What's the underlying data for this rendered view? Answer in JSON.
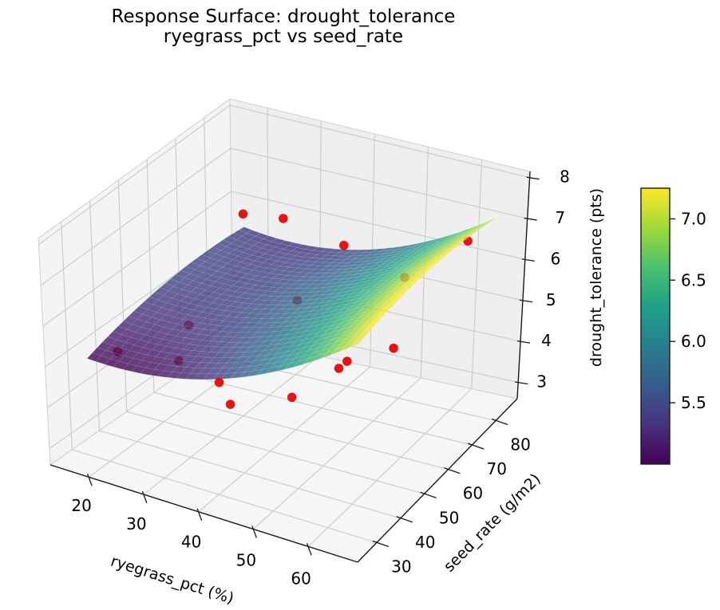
{
  "title": {
    "line1": "Response Surface: drought_tolerance",
    "line2": "ryegrass_pct vs seed_rate"
  },
  "chart_data": {
    "type": "surface",
    "subtype": "3d-response-surface-with-scatter",
    "x": {
      "label": "ryegrass_pct (%)",
      "ticks": [
        20,
        30,
        40,
        50,
        60
      ],
      "range": [
        13,
        69
      ]
    },
    "y": {
      "label": "seed_rate (g/m2)",
      "ticks": [
        30,
        40,
        50,
        60,
        70,
        80
      ],
      "range": [
        22,
        89
      ]
    },
    "z": {
      "label": "drought_tolerance (pts)",
      "ticks": [
        3,
        4,
        5,
        6,
        7,
        8
      ],
      "range": [
        2.6,
        8.15
      ]
    },
    "grid": true,
    "legend": false,
    "view": {
      "elev_deg": 30,
      "azim_deg": -60
    },
    "surface": {
      "colormap": "viridis",
      "color_range": [
        5.0,
        7.25
      ],
      "domain_x": [
        17,
        64.5
      ],
      "domain_y": [
        29,
        86
      ],
      "model": "z = b0 + b1*(x-17) + b2*(y-30) + b3*(x-17)^2 + b4*(y-30)^2 + b5*(x-17)*(y-30)",
      "coeffs": {
        "b0": 5.05,
        "b1": -0.0098,
        "b2": 0.0225,
        "b3": 0.00118,
        "b4": -0.000283,
        "b5": -0.000213
      }
    },
    "scatter": {
      "color": "#f01010",
      "point_fields": [
        "ryegrass_pct",
        "seed_rate",
        "drought_tolerance",
        "occluded_by_surface"
      ],
      "points": [
        [
          20,
          80,
          6.1,
          0
        ],
        [
          25,
          85,
          5.9,
          0
        ],
        [
          40,
          60,
          5.7,
          1
        ],
        [
          25,
          50,
          5.1,
          1
        ],
        [
          18,
          38,
          4.8,
          1
        ],
        [
          28,
          40,
          4.85,
          1
        ],
        [
          40,
          30,
          5.3,
          0
        ],
        [
          52,
          32,
          5.3,
          0
        ],
        [
          42,
          30,
          4.85,
          0
        ],
        [
          38,
          82,
          5.8,
          0
        ],
        [
          62,
          80,
          6.75,
          1
        ],
        [
          55,
          70,
          6.2,
          1
        ],
        [
          60,
          55,
          5.5,
          0
        ],
        [
          55,
          44,
          5.45,
          0
        ],
        [
          56,
          45,
          5.6,
          0
        ]
      ]
    },
    "colorbar": {
      "range": [
        5.0,
        7.25
      ],
      "tick_values": [
        5.5,
        6.0,
        6.5,
        7.0
      ],
      "tick_labels": [
        "5.5",
        "6.0",
        "6.5",
        "7.0"
      ]
    }
  },
  "colors": {
    "viridis": [
      "#440154",
      "#46327e",
      "#365c8d",
      "#277f8e",
      "#1fa187",
      "#4ac16d",
      "#a0da39",
      "#fde725"
    ],
    "scatter_red": "#f01010",
    "scatter_edge": "#a00000",
    "pane_left": "#f4f4f4",
    "pane_right": "#efefef",
    "pane_bottom": "#f6f6f6",
    "grid_line": "#cccccc",
    "pane_edge": "#cfcfcf",
    "axis_line": "#1a1a1a",
    "text": "#000000"
  }
}
